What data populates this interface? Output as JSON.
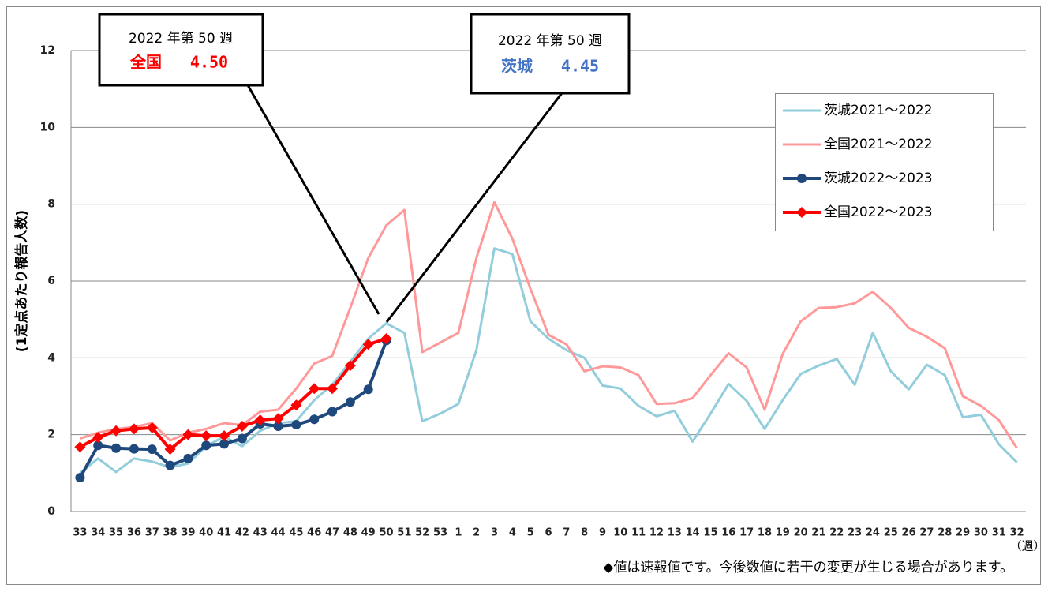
{
  "chart_data": {
    "type": "line",
    "y_label": "(1定点あたり報告人数)",
    "x_unit": "（週）",
    "note": "◆値は速報値です。今後数値に若干の変更が生じる場合があります。",
    "categories": [
      "33",
      "34",
      "35",
      "36",
      "37",
      "38",
      "39",
      "40",
      "41",
      "42",
      "43",
      "44",
      "45",
      "46",
      "47",
      "48",
      "49",
      "50",
      "51",
      "52",
      "53",
      "1",
      "2",
      "3",
      "4",
      "5",
      "6",
      "7",
      "8",
      "9",
      "10",
      "11",
      "12",
      "13",
      "14",
      "15",
      "16",
      "17",
      "18",
      "19",
      "20",
      "21",
      "22",
      "23",
      "24",
      "25",
      "26",
      "27",
      "28",
      "29",
      "30",
      "31",
      "32"
    ],
    "ylim": [
      0,
      12
    ],
    "yticks": [
      0,
      2,
      4,
      6,
      8,
      10,
      12
    ],
    "grid": true,
    "legend": "upper right",
    "series": [
      {
        "name": "茨城2021〜2022",
        "color": "#92cddc",
        "marker": null,
        "values": [
          1.0,
          1.38,
          1.03,
          1.38,
          1.3,
          1.15,
          1.25,
          1.7,
          1.95,
          1.7,
          2.1,
          2.3,
          2.35,
          2.9,
          3.3,
          3.9,
          4.5,
          4.9,
          4.65,
          2.35,
          2.55,
          2.8,
          4.2,
          6.85,
          6.7,
          4.95,
          4.5,
          4.2,
          4.0,
          3.28,
          3.2,
          2.75,
          2.48,
          2.62,
          1.82,
          2.55,
          3.32,
          2.88,
          2.15,
          2.9,
          3.58,
          3.8,
          3.97,
          3.3,
          4.65,
          3.65,
          3.18,
          3.82,
          3.55,
          2.45,
          2.52,
          1.75,
          1.28
        ]
      },
      {
        "name": "全国2021〜2022",
        "color": "#ff9999",
        "marker": null,
        "values": [
          1.9,
          2.05,
          2.15,
          2.2,
          2.3,
          1.85,
          2.05,
          2.15,
          2.3,
          2.25,
          2.6,
          2.65,
          3.2,
          3.85,
          4.05,
          5.3,
          6.6,
          7.45,
          7.85,
          4.15,
          4.4,
          4.65,
          6.6,
          8.05,
          7.1,
          5.8,
          4.6,
          4.35,
          3.65,
          3.78,
          3.75,
          3.55,
          2.8,
          2.82,
          2.95,
          3.55,
          4.12,
          3.75,
          2.65,
          4.1,
          4.95,
          5.3,
          5.32,
          5.42,
          5.72,
          5.3,
          4.78,
          4.55,
          4.25,
          3.0,
          2.75,
          2.38,
          1.65
        ]
      },
      {
        "name": "茨城2022〜2023",
        "color": "#1f497d",
        "marker": "circle",
        "values": [
          0.88,
          1.72,
          1.65,
          1.63,
          1.62,
          1.2,
          1.38,
          1.72,
          1.76,
          1.9,
          2.28,
          2.22,
          2.26,
          2.4,
          2.6,
          2.85,
          3.18,
          4.45,
          null,
          null,
          null,
          null,
          null,
          null,
          null,
          null,
          null,
          null,
          null,
          null,
          null,
          null,
          null,
          null,
          null,
          null,
          null,
          null,
          null,
          null,
          null,
          null,
          null,
          null,
          null,
          null,
          null,
          null,
          null,
          null,
          null,
          null,
          null
        ]
      },
      {
        "name": "全国2022〜2023",
        "color": "#ff0000",
        "marker": "diamond",
        "values": [
          1.68,
          1.93,
          2.1,
          2.15,
          2.18,
          1.62,
          2.0,
          1.97,
          1.97,
          2.22,
          2.38,
          2.42,
          2.77,
          3.2,
          3.2,
          3.8,
          4.35,
          4.5,
          null,
          null,
          null,
          null,
          null,
          null,
          null,
          null,
          null,
          null,
          null,
          null,
          null,
          null,
          null,
          null,
          null,
          null,
          null,
          null,
          null,
          null,
          null,
          null,
          null,
          null,
          null,
          null,
          null,
          null,
          null,
          null,
          null,
          null,
          null
        ]
      }
    ],
    "annotations": [
      {
        "title": "2022 年第 50 週",
        "label": "全国",
        "value_text": "4.50",
        "color": "#ff0000"
      },
      {
        "title": "2022 年第 50 週",
        "label": "茨城",
        "value_text": "4.45",
        "color": "#4472c4"
      }
    ]
  }
}
